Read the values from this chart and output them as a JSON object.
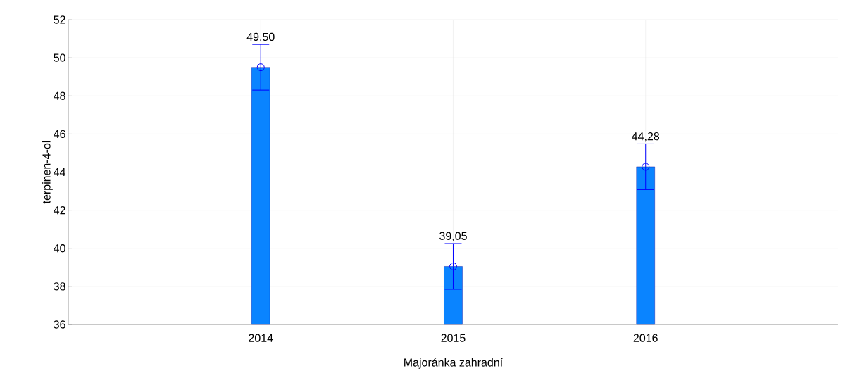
{
  "chart_data": {
    "type": "bar",
    "xlabel": "Majoránka zahradní",
    "ylabel": "terpinen-4-ol",
    "categories": [
      "2014",
      "2015",
      "2016"
    ],
    "series": [
      {
        "color": "#0a84ff",
        "values": [
          49.5,
          39.05,
          44.28
        ],
        "errors": [
          1.2,
          1.2,
          1.2
        ],
        "value_labels": [
          "49,50",
          "39,05",
          "44,28"
        ]
      },
      {
        "type": "scatter",
        "color": "#0000ff",
        "marker": "circle",
        "values": [
          49.5,
          39.05,
          44.28
        ]
      }
    ],
    "ylim": [
      36,
      52
    ],
    "yticks": [
      36,
      38,
      40,
      42,
      44,
      46,
      48,
      50,
      52
    ],
    "grid": true
  }
}
